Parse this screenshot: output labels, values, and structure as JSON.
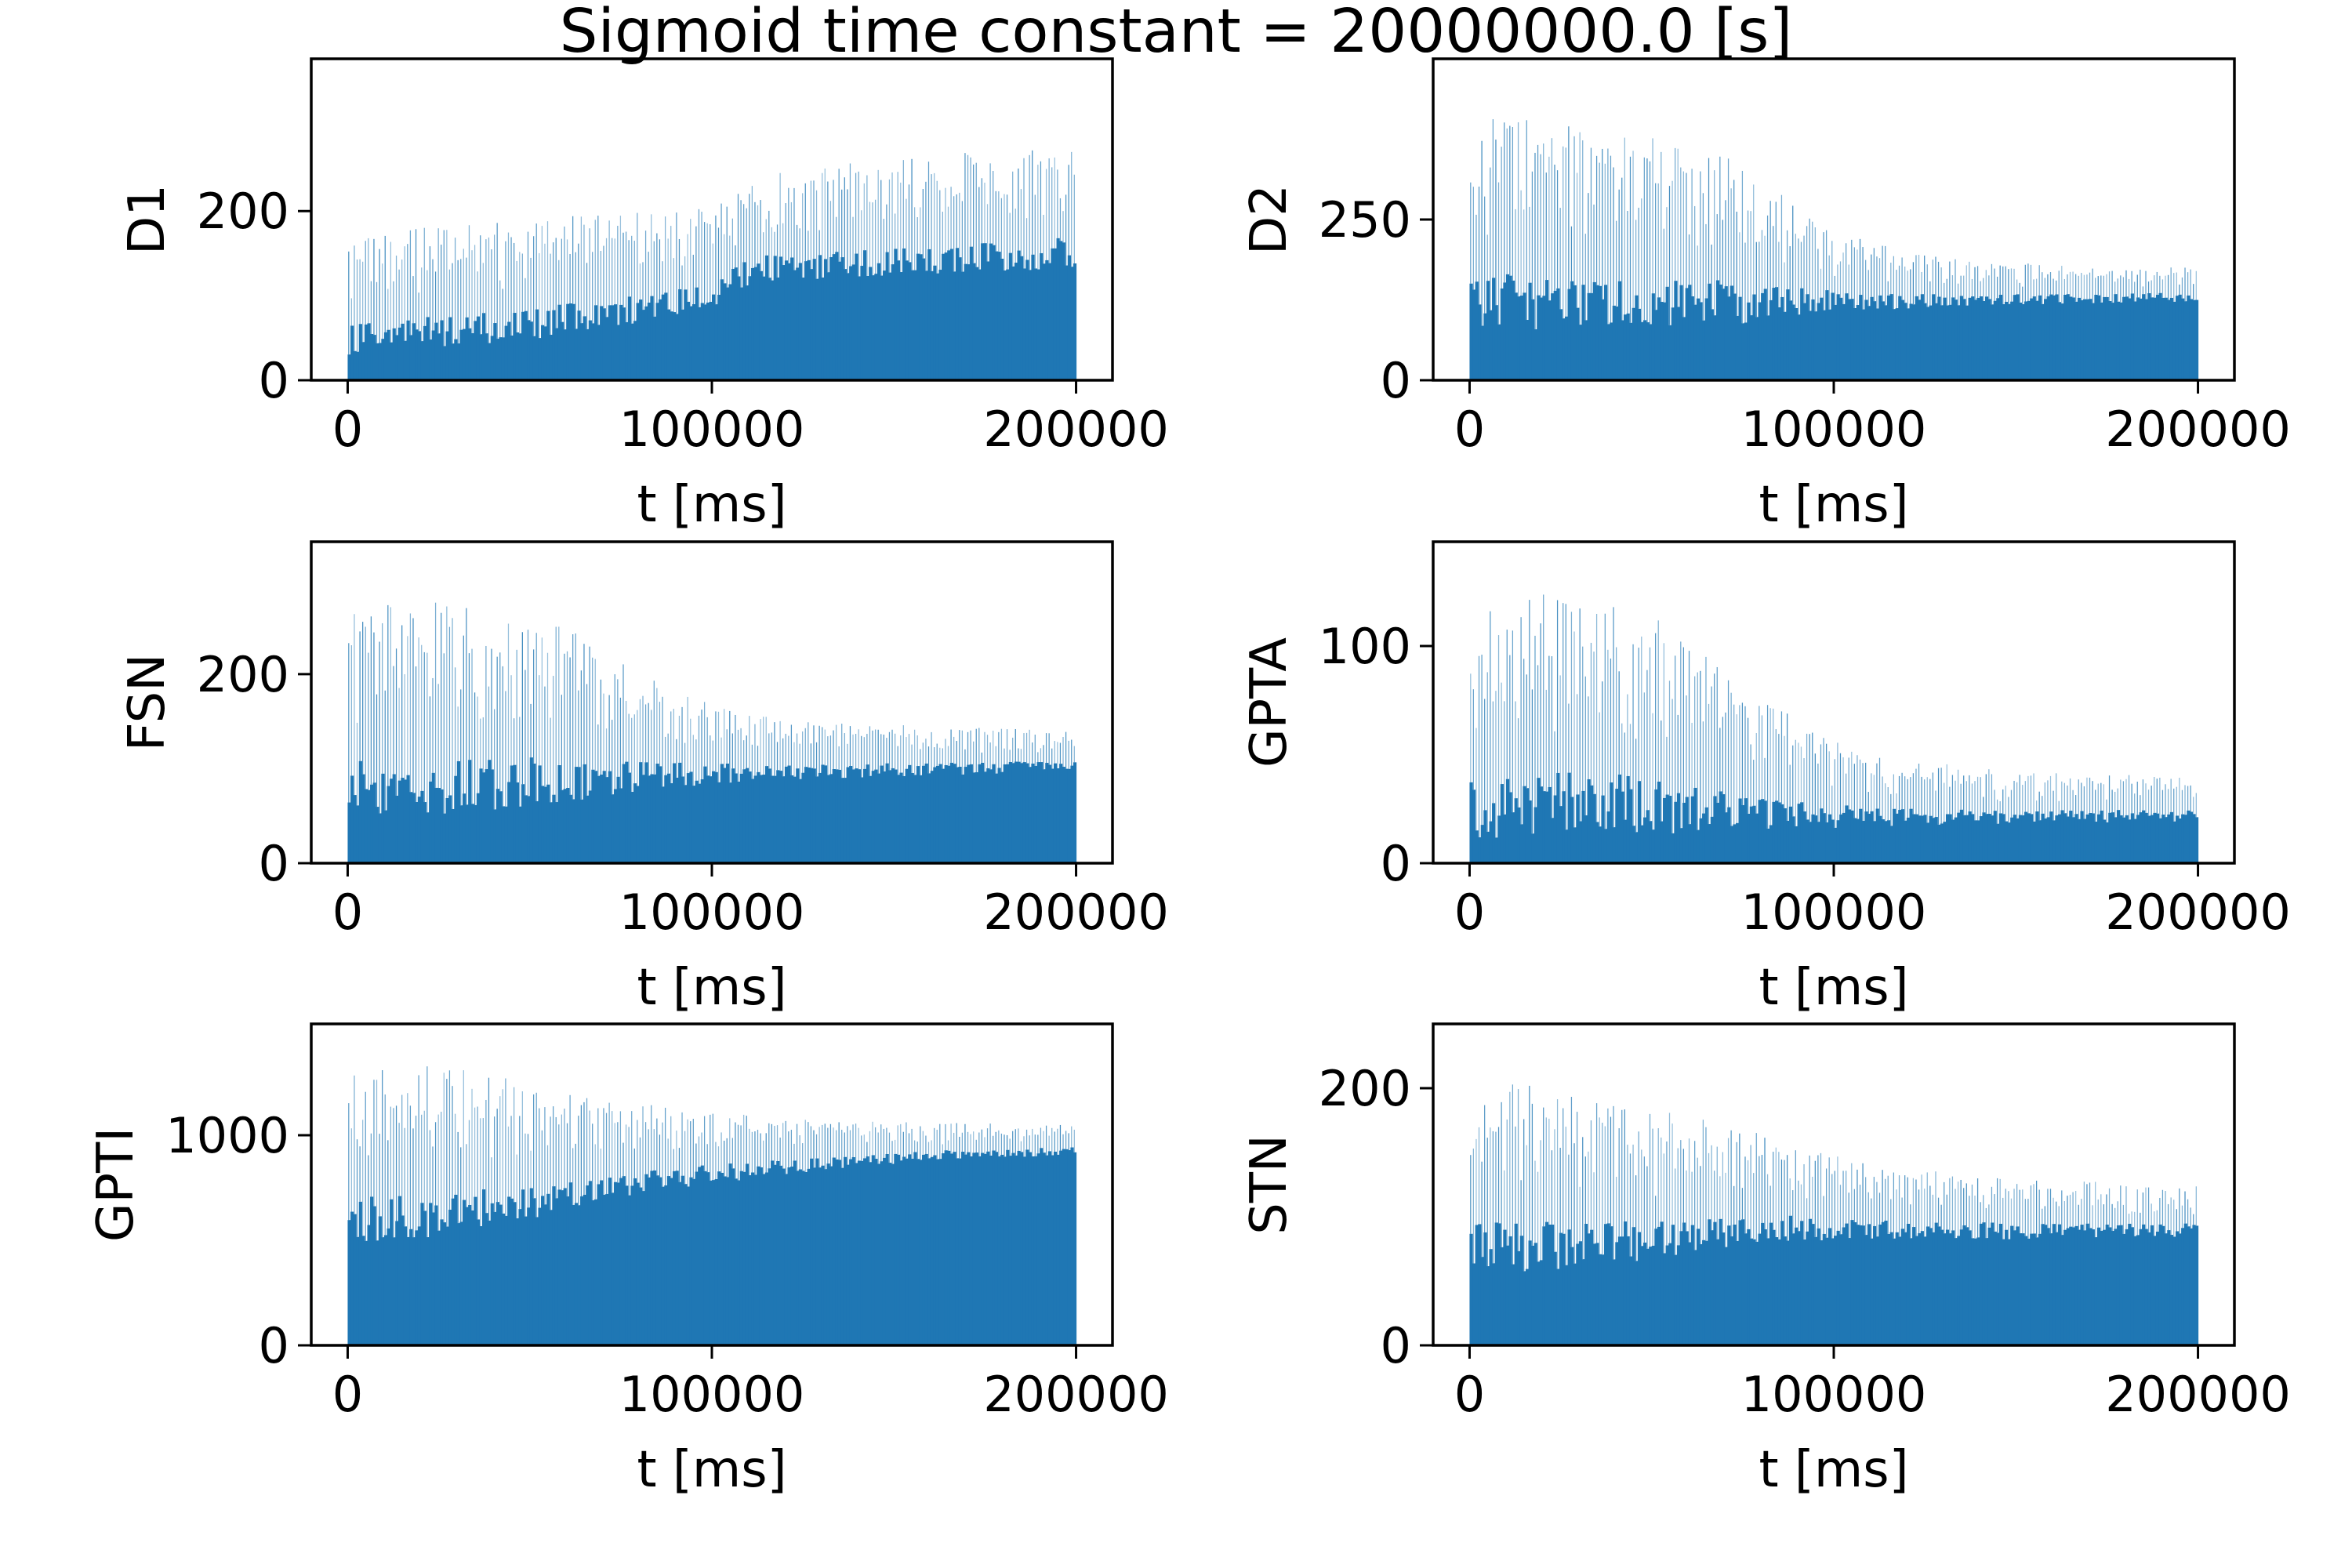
{
  "figure": {
    "title": "Sigmoid time constant = 20000000.0 [s]"
  },
  "colors": {
    "bar": "#1f77b4",
    "axes": "#000000",
    "background": "#ffffff"
  },
  "chart_data": [
    {
      "type": "bar",
      "panel": "top-left",
      "ylabel": "D1",
      "xlabel": "t [ms]",
      "xlim": [
        -10000,
        210000
      ],
      "ylim": [
        0,
        380
      ],
      "xticks": [
        0,
        100000,
        200000
      ],
      "xtick_labels": [
        "0",
        "100000",
        "200000"
      ],
      "yticks": [
        0,
        200
      ],
      "ytick_labels": [
        "0",
        "200"
      ],
      "bin_width": 200,
      "t_end": 200000,
      "envelope": {
        "t": [
          0,
          20000,
          50000,
          80000,
          100000,
          110000,
          140000,
          170000,
          200000
        ],
        "low": [
          20,
          30,
          40,
          60,
          75,
          105,
          115,
          120,
          125
        ],
        "high": [
          170,
          180,
          190,
          200,
          205,
          240,
          260,
          270,
          275
        ]
      }
    },
    {
      "type": "bar",
      "panel": "top-right",
      "ylabel": "D2",
      "xlabel": "t [ms]",
      "xlim": [
        -10000,
        210000
      ],
      "ylim": [
        0,
        500
      ],
      "xticks": [
        0,
        100000,
        200000
      ],
      "xtick_labels": [
        "0",
        "100000",
        "200000"
      ],
      "yticks": [
        0,
        250
      ],
      "ytick_labels": [
        "0",
        "250"
      ],
      "bin_width": 200,
      "t_end": 200000,
      "envelope": {
        "t": [
          0,
          10000,
          40000,
          70000,
          100000,
          130000,
          160000,
          200000
        ],
        "low": [
          60,
          60,
          60,
          70,
          100,
          110,
          115,
          120
        ],
        "high": [
          390,
          420,
          390,
          360,
          230,
          190,
          180,
          175
        ]
      }
    },
    {
      "type": "bar",
      "panel": "middle-left",
      "ylabel": "FSN",
      "xlabel": "t [ms]",
      "xlim": [
        -10000,
        210000
      ],
      "ylim": [
        0,
        340
      ],
      "xticks": [
        0,
        100000,
        200000
      ],
      "xtick_labels": [
        "0",
        "100000",
        "200000"
      ],
      "yticks": [
        0,
        200
      ],
      "ytick_labels": [
        "0",
        "200"
      ],
      "bin_width": 200,
      "t_end": 200000,
      "envelope": {
        "t": [
          0,
          30000,
          60000,
          90000,
          120000,
          160000,
          200000
        ],
        "low": [
          40,
          40,
          55,
          75,
          85,
          90,
          95
        ],
        "high": [
          270,
          280,
          250,
          180,
          150,
          145,
          140
        ]
      }
    },
    {
      "type": "bar",
      "panel": "middle-right",
      "ylabel": "GPTA",
      "xlabel": "t [ms]",
      "xlim": [
        -10000,
        210000
      ],
      "ylim": [
        0,
        148
      ],
      "xticks": [
        0,
        100000,
        200000
      ],
      "xtick_labels": [
        "0",
        "100000",
        "200000"
      ],
      "yticks": [
        0,
        100
      ],
      "ytick_labels": [
        "0",
        "100"
      ],
      "bin_width": 200,
      "t_end": 200000,
      "envelope": {
        "t": [
          0,
          20000,
          50000,
          80000,
          110000,
          150000,
          200000
        ],
        "low": [
          5,
          8,
          8,
          12,
          15,
          17,
          18
        ],
        "high": [
          115,
          125,
          115,
          75,
          50,
          42,
          40
        ]
      }
    },
    {
      "type": "bar",
      "panel": "bottom-left",
      "ylabel": "GPTI",
      "xlabel": "t [ms]",
      "xlim": [
        -10000,
        210000
      ],
      "ylim": [
        0,
        1530
      ],
      "xticks": [
        0,
        100000,
        200000
      ],
      "xtick_labels": [
        "0",
        "100000",
        "200000"
      ],
      "yticks": [
        0,
        1000
      ],
      "ytick_labels": [
        "0",
        "1000"
      ],
      "bin_width": 200,
      "t_end": 200000,
      "envelope": {
        "t": [
          0,
          20000,
          50000,
          80000,
          120000,
          160000,
          200000
        ],
        "low": [
          450,
          450,
          550,
          700,
          800,
          870,
          900
        ],
        "high": [
          1300,
          1350,
          1250,
          1150,
          1080,
          1060,
          1050
        ]
      }
    },
    {
      "type": "bar",
      "panel": "bottom-right",
      "ylabel": "STN",
      "xlabel": "t [ms]",
      "xlim": [
        -10000,
        210000
      ],
      "ylim": [
        0,
        250
      ],
      "xticks": [
        0,
        100000,
        200000
      ],
      "xtick_labels": [
        "0",
        "100000",
        "200000"
      ],
      "yticks": [
        0,
        200
      ],
      "ytick_labels": [
        "0",
        "200"
      ],
      "bin_width": 200,
      "t_end": 200000,
      "envelope": {
        "t": [
          0,
          20000,
          50000,
          80000,
          110000,
          150000,
          200000
        ],
        "low": [
          50,
          50,
          60,
          75,
          80,
          80,
          82
        ],
        "high": [
          200,
          205,
          185,
          165,
          140,
          130,
          125
        ]
      }
    }
  ]
}
